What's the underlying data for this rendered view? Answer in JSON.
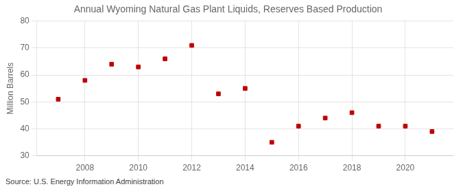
{
  "chart_data": {
    "type": "scatter",
    "title": "Annual Wyoming Natural Gas Plant Liquids, Reserves Based Production",
    "ylabel": "Million Barrels",
    "annotation": "Source: U.S. Energy Information Administration",
    "x": [
      2007,
      2008,
      2009,
      2010,
      2011,
      2012,
      2013,
      2014,
      2015,
      2016,
      2017,
      2018,
      2019,
      2020,
      2021
    ],
    "values": [
      51.0,
      58.0,
      64.0,
      63.0,
      66.0,
      71.0,
      53.0,
      55.0,
      35.0,
      41.0,
      44.0,
      46.0,
      41.0,
      41.0,
      39.0
    ],
    "color": "#c00000",
    "marker": "square",
    "xlim": [
      2006.2,
      2021.8
    ],
    "xticks": [
      2008,
      2010,
      2012,
      2014,
      2016,
      2018,
      2020
    ],
    "ylim": [
      30,
      80
    ],
    "yticks": [
      30,
      40,
      50,
      60,
      70,
      80
    ],
    "grid": true
  }
}
